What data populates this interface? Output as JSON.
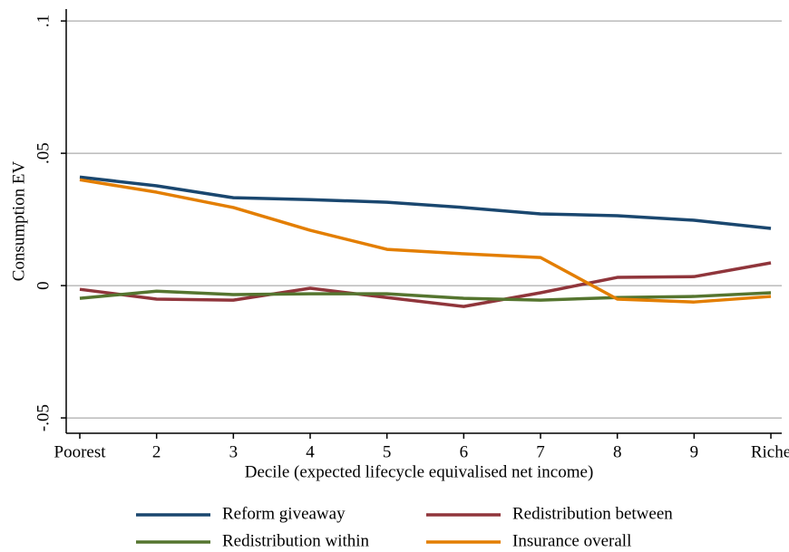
{
  "chart_data": {
    "type": "line",
    "x_label": "Decile (expected lifecycle equivalised net income)",
    "y_label": "Consumption EV",
    "categories": [
      "Poorest",
      "2",
      "3",
      "4",
      "5",
      "6",
      "7",
      "8",
      "9",
      "Riche"
    ],
    "series": [
      {
        "name": "Reform giveaway",
        "color": "#1a476f",
        "values": [
          0.041,
          0.0377,
          0.0332,
          0.0325,
          0.0315,
          0.0295,
          0.0271,
          0.0264,
          0.0247,
          0.0216
        ]
      },
      {
        "name": "Redistribution between",
        "color": "#90353b",
        "values": [
          -0.0014,
          -0.0051,
          -0.0055,
          -0.001,
          -0.0045,
          -0.0079,
          -0.0027,
          0.0031,
          0.0034,
          0.0086
        ]
      },
      {
        "name": "Redistribution within",
        "color": "#55752f",
        "values": [
          -0.0048,
          -0.0021,
          -0.0034,
          -0.0031,
          -0.0031,
          -0.0048,
          -0.0055,
          -0.0045,
          -0.0041,
          -0.0027
        ]
      },
      {
        "name": "Insurance overall",
        "color": "#e37e00",
        "values": [
          0.04,
          0.0353,
          0.0295,
          0.0209,
          0.0137,
          0.012,
          0.0106,
          -0.0051,
          -0.0062,
          -0.0041
        ]
      }
    ],
    "ylim": [
      -0.0558,
      0.1045
    ],
    "yticks": [
      {
        "value": -0.05,
        "label": "-.05"
      },
      0,
      {
        "value": 0.05,
        "label": ".05"
      },
      {
        "value": 0.1,
        "label": ".1"
      }
    ],
    "grid": true
  }
}
